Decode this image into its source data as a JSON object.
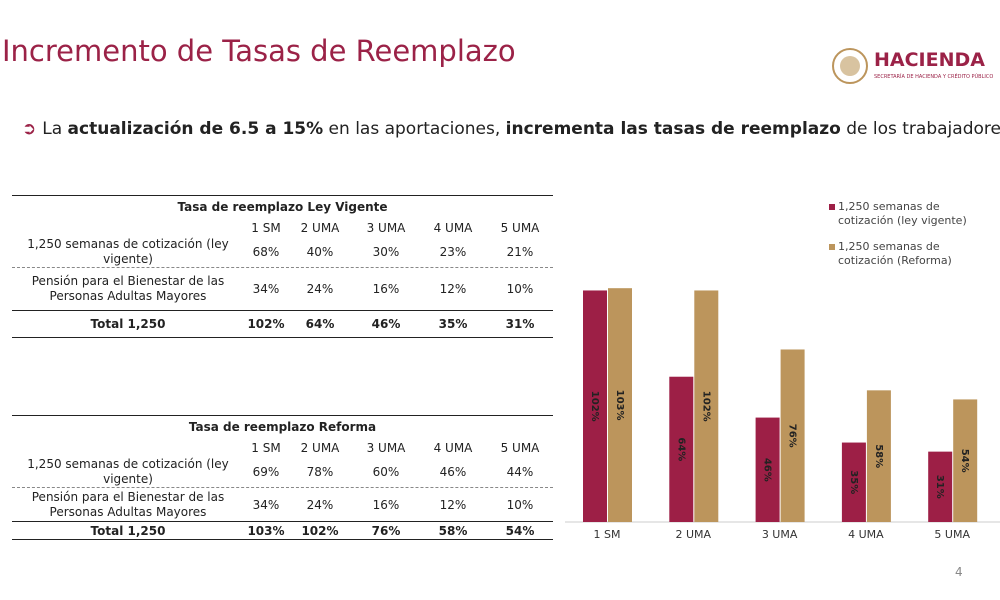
{
  "header": {
    "title": "Incremento de Tasas de Reemplazo",
    "logo": "HACIENDA",
    "logo_subtitle": "SECRETARÍA DE HACIENDA Y CRÉDITO PÚBLICO"
  },
  "bullet": [
    {
      "text": "La ",
      "bold": false
    },
    {
      "text": "actualización de 6.5 a 15%",
      "bold": true
    },
    {
      "text": " en las aportaciones, ",
      "bold": false
    },
    {
      "text": "incrementa las tasas de reemplazo",
      "bold": true
    },
    {
      "text": " de los trabajadores.",
      "bold": false
    }
  ],
  "tables": [
    {
      "title": "Tasa de reemplazo Ley Vigente",
      "columns": [
        "1 SM",
        "2 UMA",
        "3 UMA",
        "4 UMA",
        "5 UMA"
      ],
      "rows": [
        [
          "1,250 semanas de cotización (ley vigente)",
          "68%",
          "40%",
          "30%",
          "23%",
          "21%"
        ],
        [
          "Pensión para el Bienestar de las Personas Adultas Mayores",
          "34%",
          "24%",
          "16%",
          "12%",
          "10%"
        ],
        [
          "Total 1,250",
          "102%",
          "64%",
          "46%",
          "35%",
          "31%"
        ]
      ]
    },
    {
      "title": "Tasa de reemplazo Reforma",
      "columns": [
        "1 SM",
        "2 UMA",
        "3 UMA",
        "4 UMA",
        "5 UMA"
      ],
      "rows": [
        [
          "1,250 semanas de cotización (ley vigente)",
          "69%",
          "78%",
          "60%",
          "46%",
          "44%"
        ],
        [
          "Pensión para el Bienestar de las Personas Adultas Mayores",
          "34%",
          "24%",
          "16%",
          "12%",
          "10%"
        ],
        [
          "Total 1,250",
          "103%",
          "102%",
          "76%",
          "58%",
          "54%"
        ]
      ]
    }
  ],
  "chart_data": {
    "type": "bar",
    "categories": [
      "1 SM",
      "2 UMA",
      "3 UMA",
      "4 UMA",
      "5 UMA"
    ],
    "series": [
      {
        "name": "1,250 semanas de cotización (ley vigente)",
        "color": "#9d1f46",
        "values": [
          102,
          64,
          46,
          35,
          31
        ],
        "value_labels": [
          "102%",
          "64%",
          "46%",
          "35%",
          "31%"
        ]
      },
      {
        "name": "1,250 semanas de cotización (Reforma)",
        "color": "#bc955c",
        "values": [
          103,
          102,
          76,
          58,
          54
        ],
        "value_labels": [
          "103%",
          "102%",
          "76%",
          "58%",
          "54%"
        ]
      }
    ]
  },
  "page_number": "4"
}
